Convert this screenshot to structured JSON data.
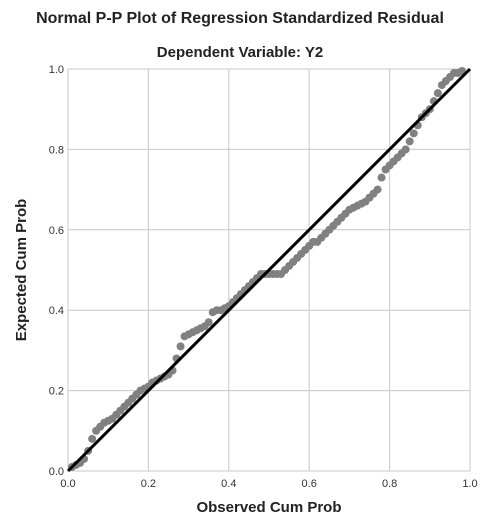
{
  "chart_data": {
    "type": "scatter",
    "title": "Normal P-P Plot of Regression Standardized Residual",
    "subtitle": "Dependent Variable: Y2",
    "xlabel": "Observed Cum Prob",
    "ylabel": "Expected Cum Prob",
    "xlim": [
      0,
      1
    ],
    "ylim": [
      0,
      1
    ],
    "xticks": [
      "0.0",
      "0.2",
      "0.4",
      "0.6",
      "0.8",
      "1.0"
    ],
    "yticks": [
      "0.0",
      "0.2",
      "0.4",
      "0.6",
      "0.8",
      "1.0"
    ],
    "grid": true,
    "reference_line": {
      "from": [
        0,
        0
      ],
      "to": [
        1,
        1
      ],
      "color": "#000000"
    },
    "point_color": "#808080",
    "points": [
      [
        0.01,
        0.01
      ],
      [
        0.02,
        0.015
      ],
      [
        0.03,
        0.02
      ],
      [
        0.04,
        0.03
      ],
      [
        0.05,
        0.05
      ],
      [
        0.06,
        0.08
      ],
      [
        0.07,
        0.1
      ],
      [
        0.08,
        0.11
      ],
      [
        0.09,
        0.12
      ],
      [
        0.1,
        0.125
      ],
      [
        0.11,
        0.13
      ],
      [
        0.12,
        0.14
      ],
      [
        0.13,
        0.15
      ],
      [
        0.14,
        0.16
      ],
      [
        0.15,
        0.17
      ],
      [
        0.16,
        0.18
      ],
      [
        0.17,
        0.19
      ],
      [
        0.18,
        0.2
      ],
      [
        0.19,
        0.205
      ],
      [
        0.2,
        0.21
      ],
      [
        0.21,
        0.22
      ],
      [
        0.22,
        0.225
      ],
      [
        0.23,
        0.23
      ],
      [
        0.24,
        0.235
      ],
      [
        0.25,
        0.24
      ],
      [
        0.26,
        0.25
      ],
      [
        0.27,
        0.28
      ],
      [
        0.28,
        0.31
      ],
      [
        0.29,
        0.335
      ],
      [
        0.3,
        0.34
      ],
      [
        0.31,
        0.345
      ],
      [
        0.32,
        0.35
      ],
      [
        0.33,
        0.355
      ],
      [
        0.34,
        0.36
      ],
      [
        0.35,
        0.37
      ],
      [
        0.36,
        0.395
      ],
      [
        0.37,
        0.4
      ],
      [
        0.38,
        0.4
      ],
      [
        0.39,
        0.405
      ],
      [
        0.4,
        0.41
      ],
      [
        0.41,
        0.42
      ],
      [
        0.42,
        0.43
      ],
      [
        0.43,
        0.44
      ],
      [
        0.44,
        0.45
      ],
      [
        0.45,
        0.46
      ],
      [
        0.46,
        0.47
      ],
      [
        0.47,
        0.48
      ],
      [
        0.48,
        0.49
      ],
      [
        0.49,
        0.49
      ],
      [
        0.5,
        0.49
      ],
      [
        0.51,
        0.49
      ],
      [
        0.52,
        0.49
      ],
      [
        0.53,
        0.49
      ],
      [
        0.54,
        0.5
      ],
      [
        0.55,
        0.51
      ],
      [
        0.56,
        0.52
      ],
      [
        0.57,
        0.53
      ],
      [
        0.58,
        0.54
      ],
      [
        0.59,
        0.55
      ],
      [
        0.6,
        0.56
      ],
      [
        0.61,
        0.57
      ],
      [
        0.62,
        0.57
      ],
      [
        0.63,
        0.58
      ],
      [
        0.64,
        0.59
      ],
      [
        0.65,
        0.6
      ],
      [
        0.66,
        0.61
      ],
      [
        0.67,
        0.62
      ],
      [
        0.68,
        0.63
      ],
      [
        0.69,
        0.64
      ],
      [
        0.7,
        0.65
      ],
      [
        0.71,
        0.655
      ],
      [
        0.72,
        0.66
      ],
      [
        0.73,
        0.665
      ],
      [
        0.74,
        0.67
      ],
      [
        0.75,
        0.68
      ],
      [
        0.76,
        0.69
      ],
      [
        0.77,
        0.7
      ],
      [
        0.78,
        0.73
      ],
      [
        0.79,
        0.75
      ],
      [
        0.8,
        0.76
      ],
      [
        0.81,
        0.77
      ],
      [
        0.82,
        0.78
      ],
      [
        0.83,
        0.79
      ],
      [
        0.84,
        0.8
      ],
      [
        0.85,
        0.82
      ],
      [
        0.86,
        0.84
      ],
      [
        0.87,
        0.86
      ],
      [
        0.88,
        0.88
      ],
      [
        0.89,
        0.89
      ],
      [
        0.9,
        0.9
      ],
      [
        0.91,
        0.92
      ],
      [
        0.92,
        0.94
      ],
      [
        0.93,
        0.96
      ],
      [
        0.94,
        0.97
      ],
      [
        0.95,
        0.98
      ],
      [
        0.96,
        0.99
      ],
      [
        0.97,
        0.99
      ],
      [
        0.98,
        0.995
      ]
    ]
  }
}
